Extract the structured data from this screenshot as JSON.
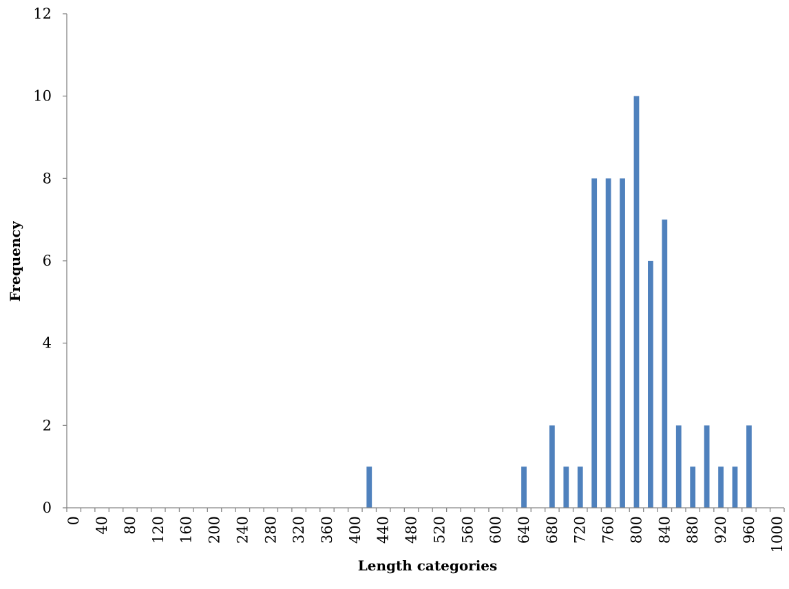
{
  "chart_data": {
    "type": "bar",
    "title": "",
    "xlabel": "Length  categories",
    "ylabel": "Frequency",
    "ylim": [
      0,
      12
    ],
    "yticks": [
      "0",
      "2",
      "4",
      "6",
      "8",
      "10",
      "12"
    ],
    "grid": false,
    "legend": "none",
    "bar_color": "#4f81bd",
    "categories": [
      "0",
      "20",
      "40",
      "60",
      "80",
      "100",
      "120",
      "140",
      "160",
      "180",
      "200",
      "220",
      "240",
      "260",
      "280",
      "300",
      "320",
      "340",
      "360",
      "380",
      "400",
      "420",
      "440",
      "460",
      "480",
      "500",
      "520",
      "540",
      "560",
      "580",
      "600",
      "620",
      "640",
      "660",
      "680",
      "700",
      "720",
      "740",
      "760",
      "780",
      "800",
      "820",
      "840",
      "860",
      "880",
      "900",
      "920",
      "940",
      "960",
      "980",
      "1000"
    ],
    "category_labels": [
      "0",
      "",
      "40",
      "",
      "80",
      "",
      "120",
      "",
      "160",
      "",
      "200",
      "",
      "240",
      "",
      "280",
      "",
      "320",
      "",
      "360",
      "",
      "400",
      "",
      "440",
      "",
      "480",
      "",
      "520",
      "",
      "560",
      "",
      "600",
      "",
      "640",
      "",
      "680",
      "",
      "720",
      "",
      "760",
      "",
      "800",
      "",
      "840",
      "",
      "880",
      "",
      "920",
      "",
      "960",
      "",
      "1000"
    ],
    "values": [
      0,
      0,
      0,
      0,
      0,
      0,
      0,
      0,
      0,
      0,
      0,
      0,
      0,
      0,
      0,
      0,
      0,
      0,
      0,
      0,
      0,
      1,
      0,
      0,
      0,
      0,
      0,
      0,
      0,
      0,
      0,
      0,
      1,
      0,
      2,
      1,
      1,
      8,
      8,
      8,
      10,
      6,
      7,
      2,
      1,
      2,
      1,
      1,
      2,
      0,
      0
    ]
  }
}
